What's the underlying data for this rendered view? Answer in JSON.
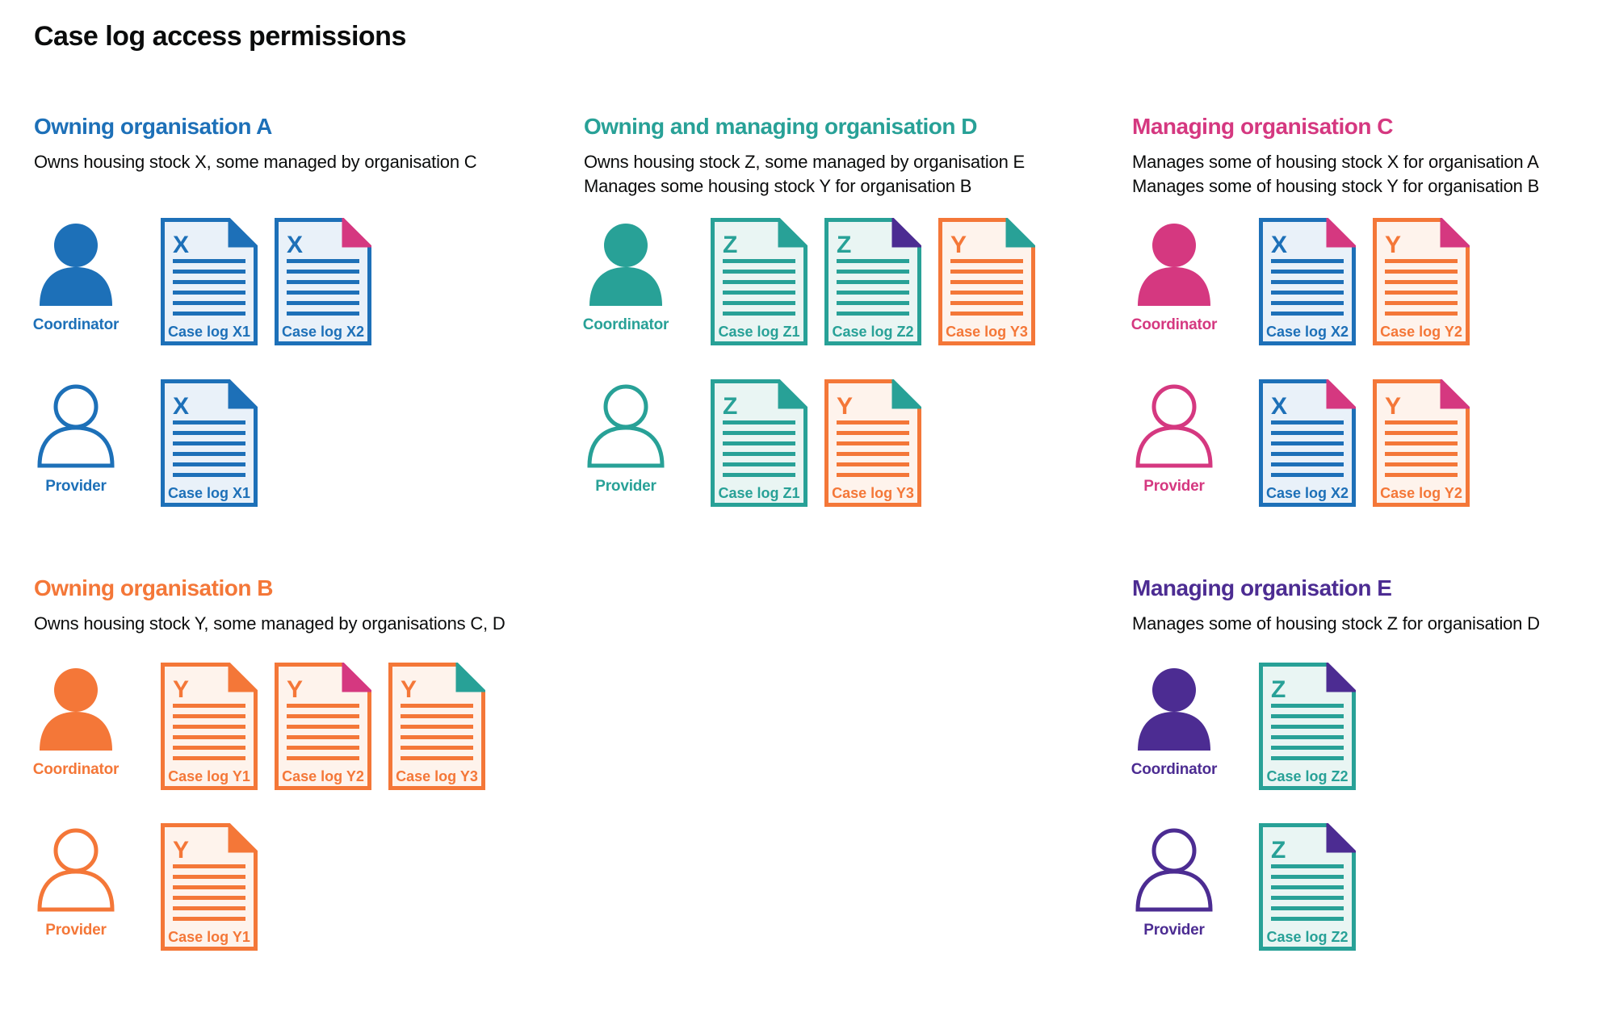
{
  "page": {
    "title": "Case log access permissions",
    "background": "#ffffff"
  },
  "colors": {
    "blue": "#1d70b8",
    "teal": "#28a197",
    "pink": "#d53880",
    "orange": "#f47738",
    "purple": "#4c2c92",
    "text": "#0b0c0c",
    "blue_tint": "#e9f1f9",
    "teal_tint": "#e9f5f3",
    "orange_tint": "#fef3ec"
  },
  "labels": {
    "coordinator": "Coordinator",
    "provider": "Provider"
  },
  "sections": [
    {
      "id": "owning-organisation-a",
      "color_key": "blue",
      "heading": "Owning organisation A",
      "subtitle_lines": [
        "Owns housing stock X, some managed by organisation C"
      ],
      "rows": [
        {
          "role": "coordinator",
          "docs": [
            {
              "letter": "X",
              "label": "Case log X1",
              "doc_color": "blue",
              "fold_color": "blue"
            },
            {
              "letter": "X",
              "label": "Case log X2",
              "doc_color": "blue",
              "fold_color": "pink"
            }
          ]
        },
        {
          "role": "provider",
          "docs": [
            {
              "letter": "X",
              "label": "Case log X1",
              "doc_color": "blue",
              "fold_color": "blue"
            }
          ]
        }
      ]
    },
    {
      "id": "owning-and-managing-organisation-d",
      "color_key": "teal",
      "heading": "Owning and managing organisation D",
      "subtitle_lines": [
        "Owns housing stock Z, some managed by organisation E",
        "Manages some housing stock Y for organisation B"
      ],
      "rows": [
        {
          "role": "coordinator",
          "docs": [
            {
              "letter": "Z",
              "label": "Case log Z1",
              "doc_color": "teal",
              "fold_color": "teal"
            },
            {
              "letter": "Z",
              "label": "Case log Z2",
              "doc_color": "teal",
              "fold_color": "purple"
            },
            {
              "letter": "Y",
              "label": "Case log Y3",
              "doc_color": "orange",
              "fold_color": "teal"
            }
          ]
        },
        {
          "role": "provider",
          "docs": [
            {
              "letter": "Z",
              "label": "Case log Z1",
              "doc_color": "teal",
              "fold_color": "teal"
            },
            {
              "letter": "Y",
              "label": "Case log Y3",
              "doc_color": "orange",
              "fold_color": "teal"
            }
          ]
        }
      ]
    },
    {
      "id": "managing-organisation-c",
      "color_key": "pink",
      "heading": "Managing organisation C",
      "subtitle_lines": [
        "Manages some of housing stock X for organisation A",
        "Manages some of housing stock Y for organisation B"
      ],
      "rows": [
        {
          "role": "coordinator",
          "docs": [
            {
              "letter": "X",
              "label": "Case log X2",
              "doc_color": "blue",
              "fold_color": "pink"
            },
            {
              "letter": "Y",
              "label": "Case log Y2",
              "doc_color": "orange",
              "fold_color": "pink"
            }
          ]
        },
        {
          "role": "provider",
          "docs": [
            {
              "letter": "X",
              "label": "Case log X2",
              "doc_color": "blue",
              "fold_color": "pink"
            },
            {
              "letter": "Y",
              "label": "Case log Y2",
              "doc_color": "orange",
              "fold_color": "pink"
            }
          ]
        }
      ]
    },
    {
      "id": "owning-organisation-b",
      "color_key": "orange",
      "heading": "Owning organisation B",
      "subtitle_lines": [
        "Owns housing stock Y, some managed by organisations C, D"
      ],
      "rows": [
        {
          "role": "coordinator",
          "docs": [
            {
              "letter": "Y",
              "label": "Case log Y1",
              "doc_color": "orange",
              "fold_color": "orange"
            },
            {
              "letter": "Y",
              "label": "Case log Y2",
              "doc_color": "orange",
              "fold_color": "pink"
            },
            {
              "letter": "Y",
              "label": "Case log Y3",
              "doc_color": "orange",
              "fold_color": "teal"
            }
          ]
        },
        {
          "role": "provider",
          "docs": [
            {
              "letter": "Y",
              "label": "Case log Y1",
              "doc_color": "orange",
              "fold_color": "orange"
            }
          ]
        }
      ]
    },
    {
      "id": "managing-organisation-e",
      "color_key": "purple",
      "heading": "Managing organisation E",
      "subtitle_lines": [
        "Manages some of housing stock Z for organisation D"
      ],
      "rows": [
        {
          "role": "coordinator",
          "docs": [
            {
              "letter": "Z",
              "label": "Case log Z2",
              "doc_color": "teal",
              "fold_color": "purple"
            }
          ]
        },
        {
          "role": "provider",
          "docs": [
            {
              "letter": "Z",
              "label": "Case log Z2",
              "doc_color": "teal",
              "fold_color": "purple"
            }
          ]
        }
      ]
    }
  ]
}
